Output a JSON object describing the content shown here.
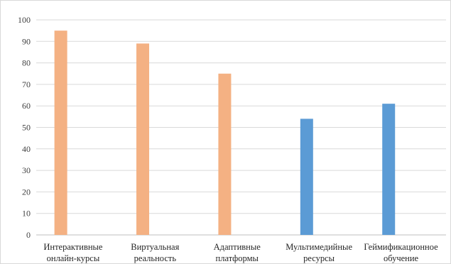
{
  "chart_data": {
    "type": "bar",
    "categories": [
      [
        "Интерактивные",
        "онлайн-курсы"
      ],
      [
        "Виртуальная",
        "реальность"
      ],
      [
        "Адаптивные",
        "платформы"
      ],
      [
        "Мультимедийные",
        "ресурсы"
      ],
      [
        "Геймификационное",
        "обучение"
      ]
    ],
    "values": [
      95,
      89,
      75,
      54,
      61
    ],
    "bar_colors": [
      "#f4b183",
      "#f4b183",
      "#f4b183",
      "#5b9bd5",
      "#5b9bd5"
    ],
    "ylim": [
      0,
      100
    ],
    "yticks": [
      0,
      10,
      20,
      30,
      40,
      50,
      60,
      70,
      80,
      90,
      100
    ],
    "grid": true,
    "legend": "none",
    "title": "",
    "xlabel": "",
    "ylabel": ""
  }
}
